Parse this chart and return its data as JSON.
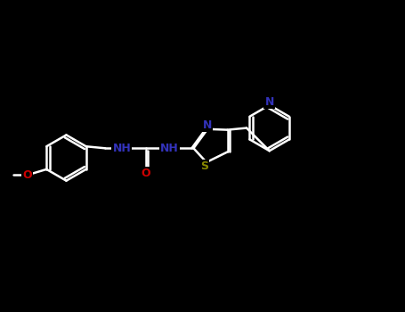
{
  "background_color": "#000000",
  "bond_color": "#ffffff",
  "N_color": "#3333bb",
  "O_color": "#cc0000",
  "S_color": "#888800",
  "figsize": [
    4.55,
    3.5
  ],
  "dpi": 100,
  "xlim": [
    -0.5,
    10.5
  ],
  "ylim": [
    -1.0,
    5.5
  ]
}
